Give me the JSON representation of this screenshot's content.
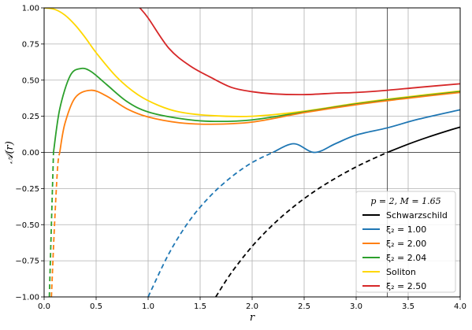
{
  "chart_data": {
    "type": "line",
    "xlabel": "r",
    "ylabel": "𝒜(r)",
    "xlim": [
      0.0,
      4.0
    ],
    "ylim": [
      -1.0,
      1.0
    ],
    "grid": true,
    "x_ticks": [
      0.0,
      0.5,
      1.0,
      1.5,
      2.0,
      2.5,
      3.0,
      3.5,
      4.0
    ],
    "x_tick_labels": [
      "0.0",
      "0.5",
      "1.0",
      "1.5",
      "2.0",
      "2.5",
      "3.0",
      "3.5",
      "4.0"
    ],
    "y_ticks": [
      1.0,
      0.75,
      0.5,
      0.25,
      0.0,
      -0.25,
      -0.5,
      -0.75,
      -1.0
    ],
    "y_tick_labels": [
      "1.00",
      "0.75",
      "0.50",
      "0.25",
      "0.00",
      "−0.25",
      "−0.50",
      "−0.75",
      "−1.00"
    ],
    "reference_lines": {
      "horizontal_y": 0.0,
      "vertical_x": 3.3
    },
    "legend": {
      "position": "lower-right",
      "title": "p = 2,    M = 1.65"
    },
    "series": [
      {
        "name": "Schwarzschild",
        "color": "#000000",
        "points": [
          [
            1.65,
            -1.0
          ],
          [
            1.8,
            -0.833
          ],
          [
            2.0,
            -0.65
          ],
          [
            2.2,
            -0.5
          ],
          [
            2.4,
            -0.375
          ],
          [
            2.6,
            -0.269
          ],
          [
            2.8,
            -0.179
          ],
          [
            3.0,
            -0.1
          ],
          [
            3.15,
            -0.048
          ],
          [
            3.3,
            0.0
          ],
          [
            3.5,
            0.057
          ],
          [
            3.7,
            0.108
          ],
          [
            3.9,
            0.154
          ],
          [
            4.0,
            0.175
          ]
        ],
        "negative_region_style": "dashed"
      },
      {
        "name": "ξ₂ = 1.00",
        "color": "#1f77b4",
        "points": [
          [
            1.0,
            -1.0
          ],
          [
            1.2,
            -0.7
          ],
          [
            1.4,
            -0.47
          ],
          [
            1.6,
            -0.3
          ],
          [
            1.8,
            -0.17
          ],
          [
            2.0,
            -0.07
          ],
          [
            2.2,
            0.0
          ],
          [
            2.4,
            0.06
          ],
          [
            2.6,
            0.0
          ],
          [
            2.8,
            0.06
          ],
          [
            3.0,
            0.12
          ],
          [
            3.3,
            0.17
          ],
          [
            3.6,
            0.23
          ],
          [
            4.0,
            0.295
          ]
        ],
        "negative_region_style": "dashed"
      },
      {
        "name": "ξ₂ = 2.00",
        "color": "#ff7f0e",
        "points": [
          [
            0.07,
            -1.0
          ],
          [
            0.1,
            -0.5
          ],
          [
            0.13,
            -0.1
          ],
          [
            0.15,
            0.0
          ],
          [
            0.2,
            0.2
          ],
          [
            0.3,
            0.38
          ],
          [
            0.45,
            0.43
          ],
          [
            0.6,
            0.39
          ],
          [
            0.8,
            0.3
          ],
          [
            1.0,
            0.245
          ],
          [
            1.3,
            0.205
          ],
          [
            1.6,
            0.195
          ],
          [
            2.0,
            0.21
          ],
          [
            2.5,
            0.275
          ],
          [
            3.0,
            0.33
          ],
          [
            3.5,
            0.375
          ],
          [
            4.0,
            0.415
          ]
        ],
        "negative_region_style": "dashed"
      },
      {
        "name": "ξ₂ = 2.04",
        "color": "#2ca02c",
        "points": [
          [
            0.05,
            -1.0
          ],
          [
            0.07,
            -0.5
          ],
          [
            0.09,
            0.0
          ],
          [
            0.15,
            0.3
          ],
          [
            0.25,
            0.53
          ],
          [
            0.35,
            0.58
          ],
          [
            0.45,
            0.56
          ],
          [
            0.6,
            0.47
          ],
          [
            0.8,
            0.35
          ],
          [
            1.0,
            0.28
          ],
          [
            1.3,
            0.235
          ],
          [
            1.6,
            0.215
          ],
          [
            2.0,
            0.225
          ],
          [
            2.5,
            0.28
          ],
          [
            3.0,
            0.335
          ],
          [
            3.5,
            0.38
          ],
          [
            4.0,
            0.42
          ]
        ],
        "negative_region_style": "dashed"
      },
      {
        "name": "Soliton",
        "color": "#ffd700",
        "points": [
          [
            0.0,
            1.0
          ],
          [
            0.1,
            0.99
          ],
          [
            0.2,
            0.95
          ],
          [
            0.3,
            0.88
          ],
          [
            0.4,
            0.79
          ],
          [
            0.5,
            0.69
          ],
          [
            0.7,
            0.52
          ],
          [
            0.9,
            0.4
          ],
          [
            1.1,
            0.325
          ],
          [
            1.3,
            0.28
          ],
          [
            1.6,
            0.255
          ],
          [
            2.0,
            0.25
          ],
          [
            2.5,
            0.285
          ],
          [
            3.0,
            0.34
          ],
          [
            3.5,
            0.385
          ],
          [
            4.0,
            0.425
          ]
        ]
      },
      {
        "name": "ξ₂ = 2.50",
        "color": "#d62728",
        "points": [
          [
            0.92,
            1.0
          ],
          [
            1.0,
            0.93
          ],
          [
            1.2,
            0.72
          ],
          [
            1.4,
            0.6
          ],
          [
            1.6,
            0.52
          ],
          [
            1.8,
            0.45
          ],
          [
            2.0,
            0.42
          ],
          [
            2.2,
            0.405
          ],
          [
            2.5,
            0.4
          ],
          [
            2.8,
            0.41
          ],
          [
            3.0,
            0.415
          ],
          [
            3.3,
            0.43
          ],
          [
            3.6,
            0.45
          ],
          [
            4.0,
            0.475
          ]
        ]
      }
    ]
  }
}
